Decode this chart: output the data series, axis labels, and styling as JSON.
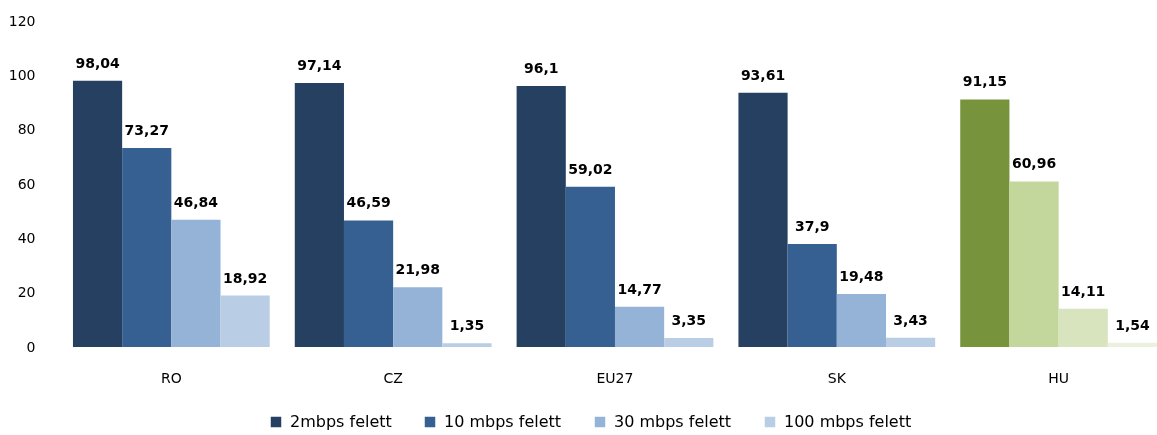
{
  "chart_data": {
    "type": "bar",
    "categories": [
      "RO",
      "CZ",
      "EU27",
      "SK",
      "HU"
    ],
    "ylim": [
      0,
      120
    ],
    "yticks": [
      0,
      20,
      40,
      60,
      80,
      100,
      120
    ],
    "legend": "bottom",
    "series": [
      {
        "name": "2mbps felett",
        "color": "#254061",
        "colors": [
          "#254061",
          "#254061",
          "#254061",
          "#254061",
          "#77933c"
        ],
        "values": [
          98.04,
          97.14,
          96.1,
          93.61,
          91.15
        ],
        "value_labels": [
          "98,04",
          "97,14",
          "96,1",
          "93,61",
          "91,15"
        ]
      },
      {
        "name": "10 mbps felett",
        "color": "#376092",
        "colors": [
          "#376092",
          "#376092",
          "#376092",
          "#376092",
          "#c3d69b"
        ],
        "values": [
          73.27,
          46.59,
          59.02,
          37.9,
          60.96
        ],
        "value_labels": [
          "73,27",
          "46,59",
          "59,02",
          "37,9",
          "60,96"
        ]
      },
      {
        "name": "30 mbps felett",
        "color": "#95b3d7",
        "colors": [
          "#95b3d7",
          "#95b3d7",
          "#95b3d7",
          "#95b3d7",
          "#d7e4bd"
        ],
        "values": [
          46.84,
          21.98,
          14.77,
          19.48,
          14.11
        ],
        "value_labels": [
          "46,84",
          "21,98",
          "14,77",
          "19,48",
          "14,11"
        ]
      },
      {
        "name": "100 mbps felett",
        "color": "#b9cde5",
        "colors": [
          "#b9cde5",
          "#b9cde5",
          "#b9cde5",
          "#b9cde5",
          "#ebf1de"
        ],
        "values": [
          18.92,
          1.35,
          3.35,
          3.43,
          1.54
        ],
        "value_labels": [
          "18,92",
          "1,35",
          "3,35",
          "3,43",
          "1,54"
        ]
      }
    ]
  }
}
